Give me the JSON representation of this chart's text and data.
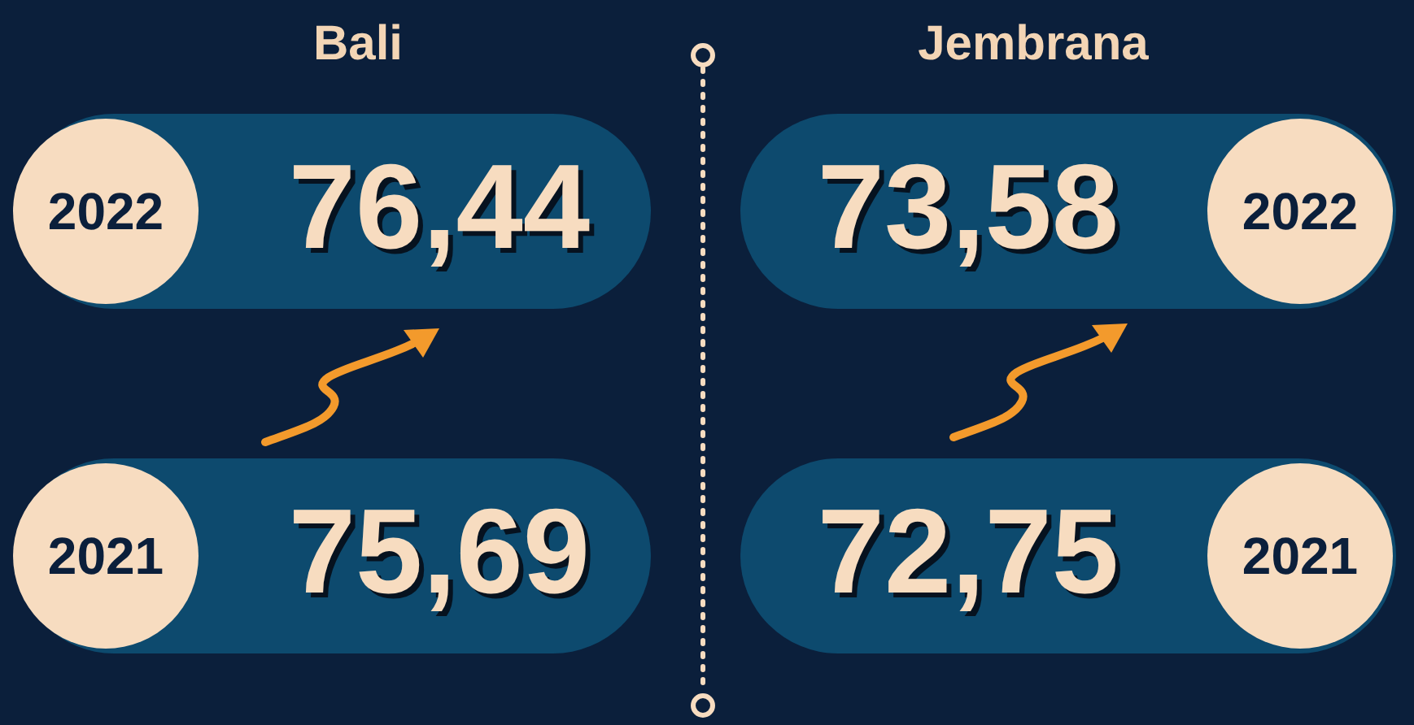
{
  "chart_data": [
    {
      "type": "other",
      "title": "Bali",
      "categories": [
        "2022",
        "2021"
      ],
      "values": [
        76.44,
        75.69
      ],
      "value_labels": [
        "76,44",
        "75,69"
      ]
    },
    {
      "type": "other",
      "title": "Jembrana",
      "categories": [
        "2022",
        "2021"
      ],
      "values": [
        73.58,
        72.75
      ],
      "value_labels": [
        "73,58",
        "72,75"
      ]
    }
  ]
}
